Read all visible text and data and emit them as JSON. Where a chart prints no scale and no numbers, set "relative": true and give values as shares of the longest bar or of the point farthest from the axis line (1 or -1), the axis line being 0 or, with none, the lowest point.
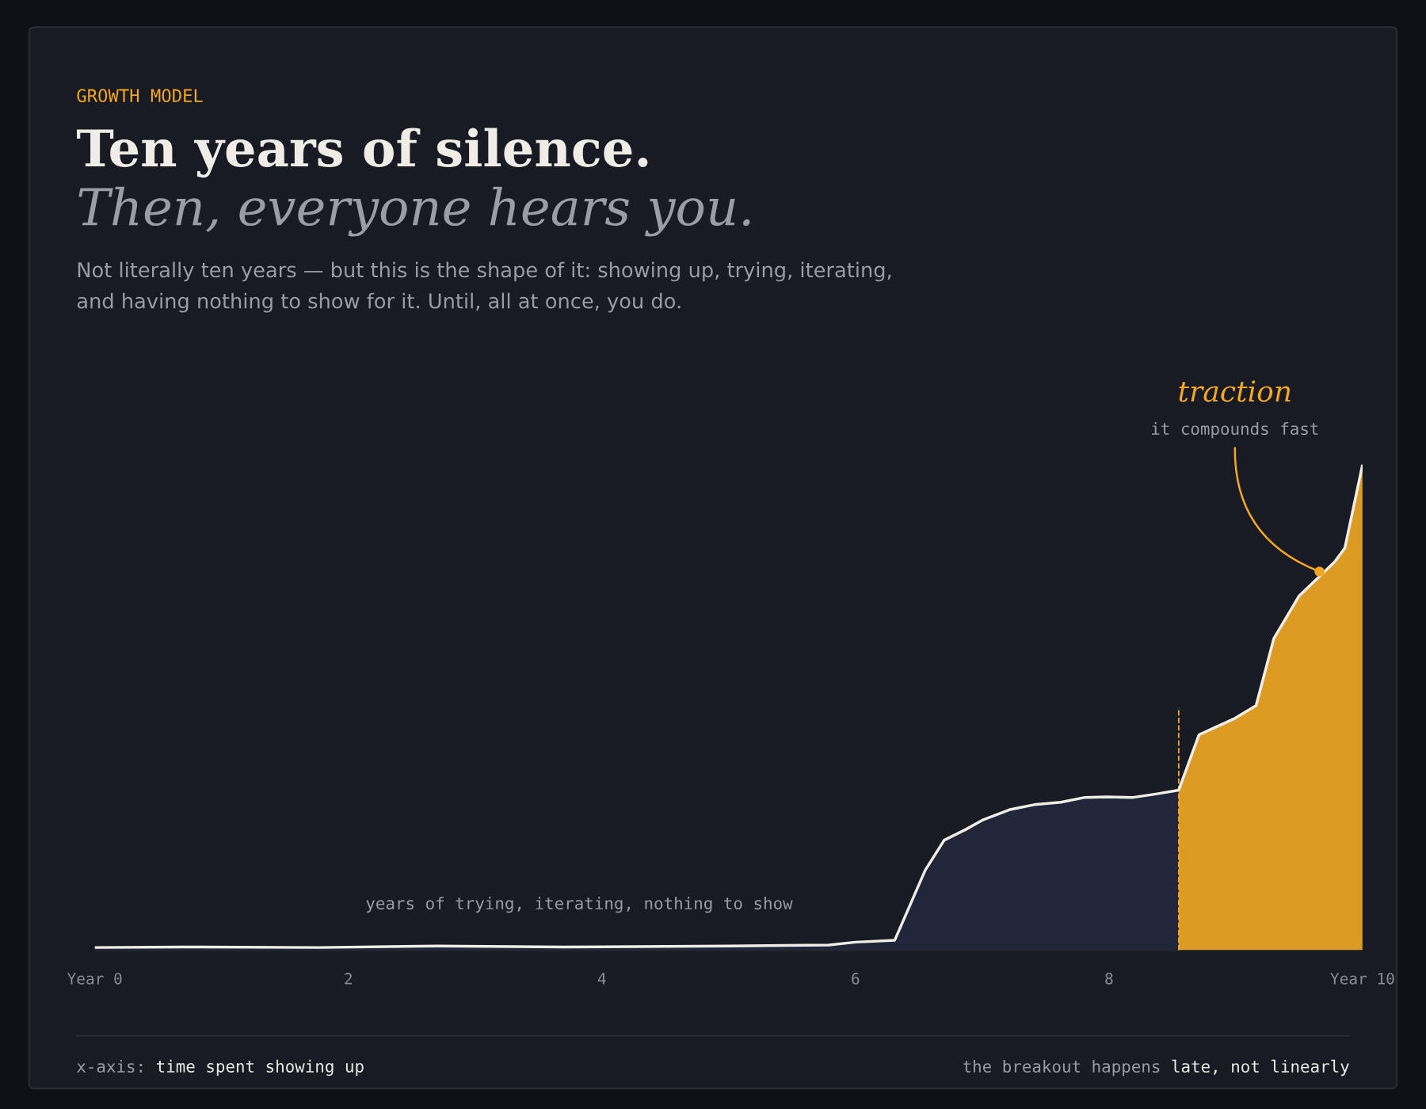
{
  "chart_data": {
    "type": "area",
    "relative": true,
    "title": "Ten years of silence.",
    "subtitle": "Then, everyone hears you.",
    "xlim": [
      0,
      10
    ],
    "xticks": [
      {
        "value": 0,
        "label": "Year 0"
      },
      2,
      4,
      6,
      8,
      {
        "value": 10,
        "label": "Year 10"
      }
    ],
    "tick_labels": "x",
    "grid": false,
    "legend": false,
    "marker": "none",
    "series": [
      {
        "color": "#21263a",
        "x": [
          0,
          0.69,
          1.77,
          2.7,
          3.7,
          5.0,
          5.79,
          6.0,
          6.31,
          6.55,
          6.7,
          6.87,
          7.0,
          7.22,
          7.41,
          7.62,
          7.81,
          7.98,
          8.19,
          8.37,
          8.55
        ],
        "values": [
          0.006,
          0.007,
          0.006,
          0.009,
          0.007,
          0.009,
          0.011,
          0.017,
          0.021,
          0.165,
          0.227,
          0.249,
          0.268,
          0.29,
          0.3,
          0.305,
          0.315,
          0.316,
          0.315,
          0.322,
          0.33
        ]
      },
      {
        "color": "#dc9b22",
        "x": [
          8.55,
          8.71,
          8.98,
          9.16,
          9.3,
          9.5,
          9.66,
          9.78,
          9.86,
          10
        ],
        "values": [
          0.33,
          0.444,
          0.476,
          0.504,
          0.642,
          0.73,
          0.77,
          0.8,
          0.828,
          1.0
        ]
      },
      {
        "type": "line",
        "color": "#f0ede6",
        "line_style": "solid",
        "x": [
          0,
          0.69,
          1.77,
          2.7,
          3.7,
          5.0,
          5.79,
          6.0,
          6.31,
          6.55,
          6.7,
          6.87,
          7.0,
          7.22,
          7.41,
          7.62,
          7.81,
          7.98,
          8.19,
          8.37,
          8.55,
          8.71,
          8.98,
          9.16,
          9.3,
          9.5,
          9.66,
          9.78,
          9.86,
          10
        ],
        "values": [
          0.006,
          0.007,
          0.006,
          0.009,
          0.007,
          0.009,
          0.011,
          0.017,
          0.021,
          0.165,
          0.227,
          0.249,
          0.268,
          0.29,
          0.3,
          0.305,
          0.315,
          0.316,
          0.315,
          0.322,
          0.33,
          0.444,
          0.476,
          0.504,
          0.642,
          0.73,
          0.77,
          0.8,
          0.828,
          1.0
        ]
      }
    ],
    "ref_lines": [
      {
        "axis": "x",
        "value": 8.55,
        "color": "#f5a623",
        "line_style": "dashed"
      }
    ],
    "annotations": [
      "GROWTH MODEL",
      "Not literally ten years — but this is the shape of it: showing up, trying, iterating,",
      "and having nothing to show for it. Until, all at once, you do.",
      "traction",
      {
        "text": "it compounds fast",
        "x": 9.66,
        "y": 0.78
      },
      "years of trying, iterating, nothing to show",
      "x-axis:",
      "time spent showing up",
      "the breakout happens",
      "late, not linearly"
    ]
  }
}
